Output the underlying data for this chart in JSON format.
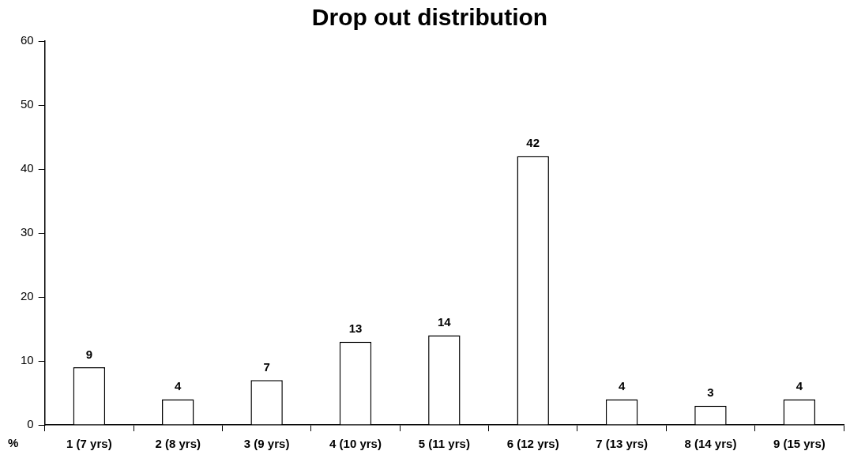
{
  "chart_data": {
    "type": "bar",
    "title": "Drop out distribution",
    "ylabel": "%",
    "categories": [
      "1 (7 yrs)",
      "2 (8 yrs)",
      "3 (9 yrs)",
      "4 (10 yrs)",
      "5 (11 yrs)",
      "6 (12 yrs)",
      "7 (13 yrs)",
      "8 (14 yrs)",
      "9 (15 yrs)"
    ],
    "values": [
      9,
      4,
      7,
      13,
      14,
      42,
      4,
      3,
      4
    ],
    "color": "#ffffff",
    "ylim": [
      0,
      60
    ],
    "yticks": [
      0,
      10,
      20,
      30,
      40,
      50,
      60
    ],
    "grid": false,
    "legend": false,
    "data_labels": true
  }
}
